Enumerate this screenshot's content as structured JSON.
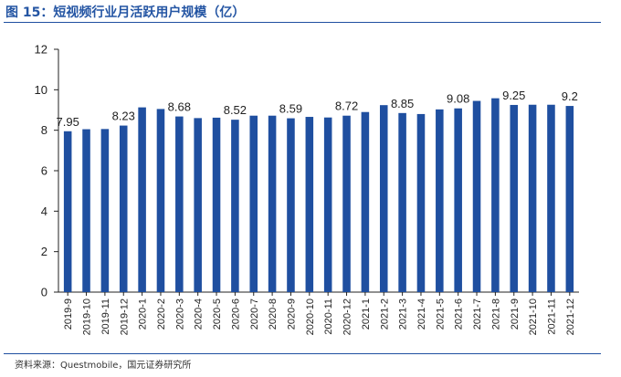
{
  "header": {
    "title": "图 15：短视频行业月活跃用户规模（亿）"
  },
  "footer": {
    "source": "资料来源：Questmobile，国元证券研究所"
  },
  "colors": {
    "bar": "#1f4fa0",
    "title": "#2455a3",
    "rule": "#1f4fa0"
  },
  "chart_data": {
    "type": "bar",
    "title": "",
    "xlabel": "",
    "ylabel": "",
    "ylim": [
      0,
      12
    ],
    "yticks": [
      0,
      2,
      4,
      6,
      8,
      10,
      12
    ],
    "grid": false,
    "legend": "none",
    "categories": [
      "2019-9",
      "2019-10",
      "2019-11",
      "2019-12",
      "2020-1",
      "2020-2",
      "2020-3",
      "2020-4",
      "2020-5",
      "2020-6",
      "2020-7",
      "2020-8",
      "2020-9",
      "2020-10",
      "2020-11",
      "2020-12",
      "2021-1",
      "2021-2",
      "2021-3",
      "2021-4",
      "2021-5",
      "2021-6",
      "2021-7",
      "2021-8",
      "2021-9",
      "2021-10",
      "2021-11",
      "2021-12"
    ],
    "values": [
      7.95,
      8.05,
      8.06,
      8.23,
      9.13,
      9.05,
      8.68,
      8.6,
      8.62,
      8.52,
      8.72,
      8.72,
      8.59,
      8.66,
      8.63,
      8.72,
      8.9,
      9.24,
      8.85,
      8.8,
      9.03,
      9.08,
      9.45,
      9.58,
      9.25,
      9.26,
      9.26,
      9.2
    ],
    "data_labels": [
      {
        "index": 0,
        "text": "7.95"
      },
      {
        "index": 3,
        "text": "8.23"
      },
      {
        "index": 6,
        "text": "8.68"
      },
      {
        "index": 9,
        "text": "8.52"
      },
      {
        "index": 12,
        "text": "8.59"
      },
      {
        "index": 15,
        "text": "8.72"
      },
      {
        "index": 18,
        "text": "8.85"
      },
      {
        "index": 21,
        "text": "9.08"
      },
      {
        "index": 24,
        "text": "9.25"
      },
      {
        "index": 27,
        "text": "9.2"
      }
    ]
  }
}
